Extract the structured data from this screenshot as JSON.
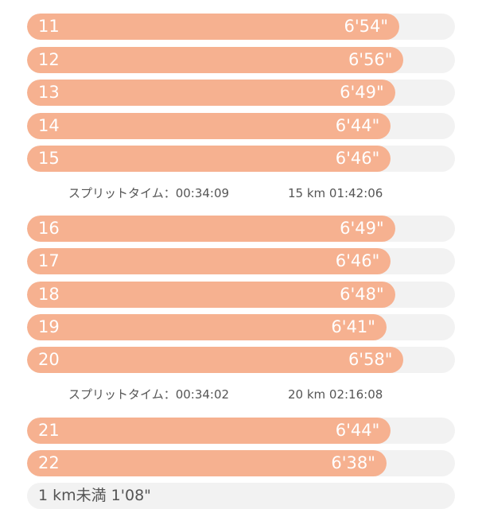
{
  "laps": [
    {
      "number": "11",
      "pace": "6'54\"",
      "fraction": 0.87
    },
    {
      "number": "12",
      "pace": "6'56\"",
      "fraction": 0.88
    },
    {
      "number": "13",
      "pace": "6'49\"",
      "fraction": 0.86
    },
    {
      "number": "14",
      "pace": "6'44\"",
      "fraction": 0.85
    },
    {
      "number": "15",
      "pace": "6'46\"",
      "fraction": 0.85
    },
    {
      "number": "16",
      "pace": "6'49\"",
      "fraction": 0.86
    },
    {
      "number": "17",
      "pace": "6'46\"",
      "fraction": 0.85
    },
    {
      "number": "18",
      "pace": "6'48\"",
      "fraction": 0.86
    },
    {
      "number": "19",
      "pace": "6'41\"",
      "fraction": 0.84
    },
    {
      "number": "20",
      "pace": "6'58\"",
      "fraction": 0.88
    },
    {
      "number": "21",
      "pace": "6'44\"",
      "fraction": 0.85
    },
    {
      "number": "22",
      "pace": "6'38\"",
      "fraction": 0.84
    }
  ],
  "splits": [
    {
      "split_time": "スプリットタイム：00:34:09",
      "cumulative": "15 km 01:42:06"
    },
    {
      "split_time": "スプリットタイム：00:34:02",
      "cumulative": "20 km 02:16:08"
    }
  ],
  "under_1km": "1 km未満 1'08\"",
  "colors": {
    "bar": "#f6b190",
    "track": "#f2f2f2",
    "text": "#555555"
  }
}
